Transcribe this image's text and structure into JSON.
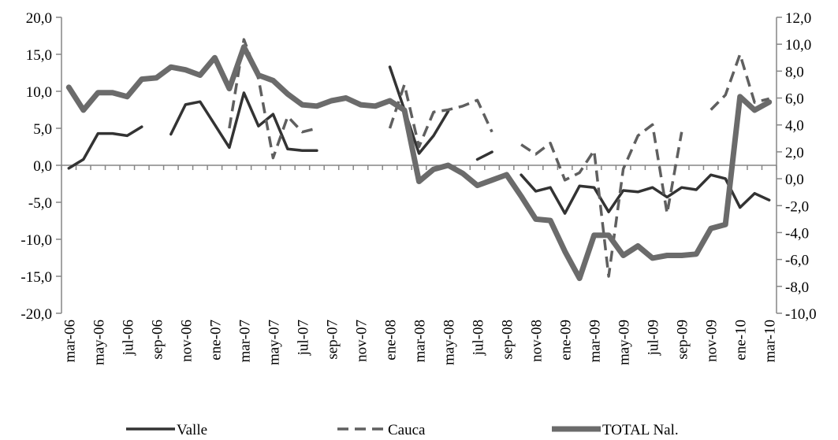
{
  "chart_data": {
    "type": "line",
    "categories": [
      "mar-06",
      null,
      "may-06",
      null,
      "jul-06",
      null,
      "sep-06",
      null,
      "nov-06",
      null,
      "ene-07",
      null,
      "mar-07",
      null,
      "may-07",
      null,
      "jul-07",
      null,
      "sep-07",
      null,
      "nov-07",
      null,
      "ene-08",
      null,
      "mar-08",
      null,
      "may-08",
      null,
      "jul-08",
      null,
      "sep-08",
      null,
      "nov-08",
      null,
      "ene-09",
      null,
      "mar-09",
      null,
      "may-09",
      null,
      "jul-09",
      null,
      "sep-09",
      null,
      "nov-09",
      null,
      "ene-10",
      null,
      "mar-10"
    ],
    "series": [
      {
        "name": "Valle",
        "color": "#333333",
        "line_style": "solid",
        "values": [
          -0.4,
          0.8,
          4.3,
          4.3,
          4.0,
          5.2,
          null,
          4.2,
          8.2,
          8.6,
          5.5,
          2.4,
          9.8,
          5.3,
          6.9,
          2.2,
          2.0,
          2.0,
          null,
          null,
          null,
          null,
          13.3,
          7.5,
          1.6,
          4.0,
          7.3,
          null,
          0.8,
          1.8,
          null,
          -1.3,
          -3.5,
          -3.0,
          -6.5,
          -2.8,
          -3.0,
          -6.3,
          -3.4,
          -3.6,
          -3.0,
          -4.3,
          -3.0,
          -3.3,
          -1.3,
          -1.8,
          -5.7,
          -3.8,
          -4.7
        ]
      },
      {
        "name": "Cauca",
        "color": "#5f5f5f",
        "line_style": "dashed",
        "values": [
          null,
          null,
          null,
          null,
          null,
          null,
          null,
          null,
          null,
          null,
          null,
          5.0,
          17.0,
          11.7,
          1.0,
          6.6,
          4.5,
          5.0,
          null,
          null,
          null,
          null,
          5.0,
          10.9,
          2.5,
          7.2,
          7.5,
          8.0,
          8.8,
          4.5,
          null,
          2.8,
          1.5,
          3.0,
          -2.0,
          -1.0,
          2.0,
          -15.0,
          -0.5,
          4.0,
          5.5,
          -6.5,
          4.5,
          null,
          7.5,
          9.5,
          15.0,
          8.5,
          9.0
        ]
      },
      {
        "name": "TOTAL Nal.",
        "color": "#6b6b6b",
        "line_style": "thick",
        "axis": "y2",
        "values": [
          6.8,
          5.1,
          6.4,
          6.4,
          6.1,
          7.4,
          7.5,
          8.3,
          8.1,
          7.7,
          9.0,
          6.7,
          9.8,
          7.7,
          7.3,
          6.3,
          5.5,
          5.4,
          5.8,
          6.0,
          5.5,
          5.4,
          5.8,
          5.1,
          -0.2,
          0.7,
          1.0,
          0.4,
          -0.5,
          -0.1,
          0.3,
          -1.3,
          -3.0,
          -3.1,
          -5.4,
          -7.4,
          -4.2,
          -4.2,
          -5.7,
          -5.0,
          -5.9,
          -5.7,
          -5.7,
          -5.6,
          -3.7,
          -3.4,
          6.1,
          5.1,
          5.7
        ]
      }
    ],
    "ylim": [
      -20,
      20
    ],
    "yticks": [
      {
        "value": -20,
        "label": "-20,0"
      },
      {
        "value": -15,
        "label": "-15,0"
      },
      {
        "value": -10,
        "label": "-10,0"
      },
      {
        "value": -5,
        "label": "-5,0"
      },
      {
        "value": 0,
        "label": "0,0"
      },
      {
        "value": 5,
        "label": "5,0"
      },
      {
        "value": 10,
        "label": "10,0"
      },
      {
        "value": 15,
        "label": "15,0"
      },
      {
        "value": 20,
        "label": "20,0"
      }
    ],
    "y2lim": [
      -10,
      12
    ],
    "y2ticks": [
      {
        "value": -10,
        "label": "-10,0"
      },
      {
        "value": -8,
        "label": "-8,0"
      },
      {
        "value": -6,
        "label": "-6,0"
      },
      {
        "value": -4,
        "label": "-4,0"
      },
      {
        "value": -2,
        "label": "-2,0"
      },
      {
        "value": 0,
        "label": "0,0"
      },
      {
        "value": 2,
        "label": "2,0"
      },
      {
        "value": 4,
        "label": "4,0"
      },
      {
        "value": 6,
        "label": "6,0"
      },
      {
        "value": 8,
        "label": "8,0"
      },
      {
        "value": 10,
        "label": "10,0"
      },
      {
        "value": 12,
        "label": "12,0"
      }
    ],
    "legend": "bottom"
  }
}
